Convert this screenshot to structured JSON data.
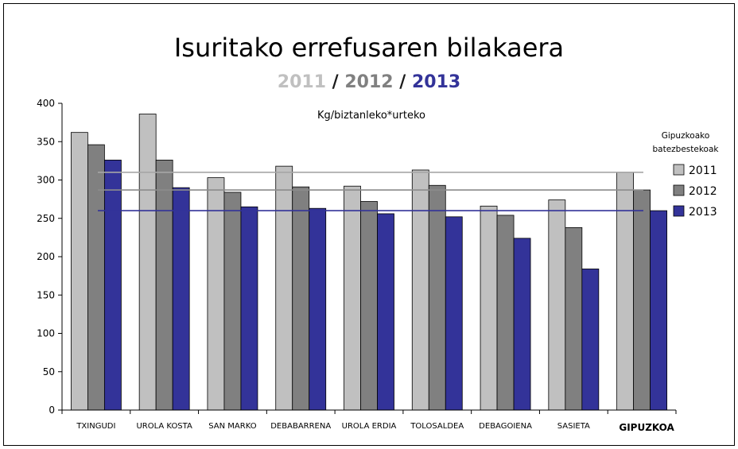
{
  "chart_data": {
    "type": "bar",
    "title": "Isuritako errefusaren bilakaera",
    "subtitle": {
      "parts": [
        {
          "text": "2011",
          "color": "#c0c0c0"
        },
        {
          "text": " / ",
          "color": "#1a1a1a"
        },
        {
          "text": "2012",
          "color": "#808080"
        },
        {
          "text": " / ",
          "color": "#1a1a1a"
        },
        {
          "text": "2013",
          "color": "#333399"
        }
      ]
    },
    "ylabel": "Kg/biztanleko*urteko",
    "ylim": [
      0,
      400
    ],
    "yticks": [
      0,
      50,
      100,
      150,
      200,
      250,
      300,
      350,
      400
    ],
    "grid": false,
    "categories": [
      "TXINGUDI",
      "UROLA KOSTA",
      "SAN MARKO",
      "DEBABARRENA",
      "UROLA ERDIA",
      "TOLOSALDEA",
      "DEBAGOIENA",
      "SASIETA",
      "GIPUZKOA"
    ],
    "series": [
      {
        "name": "2011",
        "color": "#c0c0c0",
        "values": [
          362,
          386,
          303,
          318,
          292,
          313,
          266,
          274,
          310
        ]
      },
      {
        "name": "2012",
        "color": "#808080",
        "values": [
          346,
          326,
          284,
          291,
          272,
          293,
          254,
          238,
          287
        ]
      },
      {
        "name": "2013",
        "color": "#333399",
        "values": [
          326,
          290,
          265,
          263,
          256,
          252,
          224,
          184,
          260
        ]
      }
    ],
    "averages": {
      "label_lines": [
        "Gipuzkoako",
        "batezbestekoak"
      ],
      "lines": [
        {
          "series": "2011",
          "value": 310,
          "color": "#a6a6a6"
        },
        {
          "series": "2012",
          "value": 287,
          "color": "#8c8c8c"
        },
        {
          "series": "2013",
          "value": 260,
          "color": "#333399"
        }
      ]
    },
    "legend_position": "right"
  }
}
